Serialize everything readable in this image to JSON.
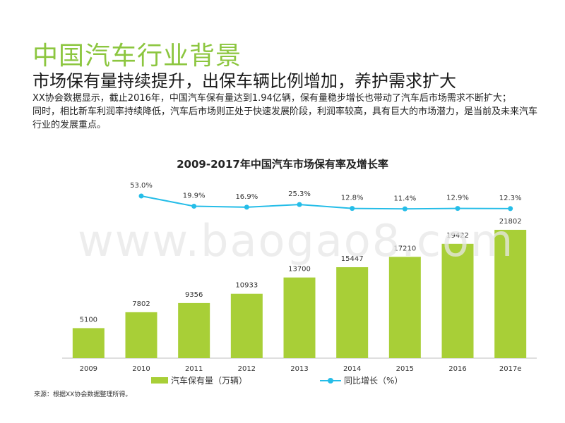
{
  "page": {
    "title": "中国汽车行业背景",
    "subtitle": "市场保有量持续提升，出保车辆比例增加，养护需求扩大",
    "paragraphs": [
      "XX协会数据显示，截止2016年，中国汽车保有量达到1.94亿辆，保有量稳步增长也带动了汽车后市场需求不断扩大；",
      "同时，相比新车利润率持续降低，汽车后市场则正处于快速发展阶段，利润率较高，具有巨大的市场潜力，是当前及未来汽车行业的发展重点。"
    ],
    "source": "来源：根据XX协会数据整理所得。",
    "watermark": "www.baogao8.com"
  },
  "colors": {
    "title": "#8cc63f",
    "bar": "#a8cf37",
    "line": "#25bde8"
  },
  "chart_data": {
    "type": "bar",
    "title": "2009-2017年中国汽车市场保有率及增长率",
    "categories": [
      "2009",
      "2010",
      "2011",
      "2012",
      "2013",
      "2014",
      "2015",
      "2016",
      "2017e"
    ],
    "series": [
      {
        "name": "汽车保有量（万辆）",
        "type": "bar",
        "values": [
          5100,
          7802,
          9356,
          10933,
          13700,
          15447,
          17210,
          19422,
          21802
        ],
        "labels": [
          "5100",
          "7802",
          "9356",
          "10933",
          "13700",
          "15447",
          "17210",
          "19422",
          "21802"
        ]
      },
      {
        "name": "同比增长（%）",
        "type": "line",
        "x": [
          "2010",
          "2011",
          "2012",
          "2013",
          "2014",
          "2015",
          "2016",
          "2017e"
        ],
        "values": [
          53.0,
          19.9,
          16.9,
          25.3,
          12.8,
          11.4,
          12.9,
          12.3
        ],
        "labels": [
          "53.0%",
          "19.9%",
          "16.9%",
          "25.3%",
          "12.8%",
          "11.4%",
          "12.9%",
          "12.3%"
        ]
      }
    ],
    "grid": false,
    "legend": "bottom"
  }
}
